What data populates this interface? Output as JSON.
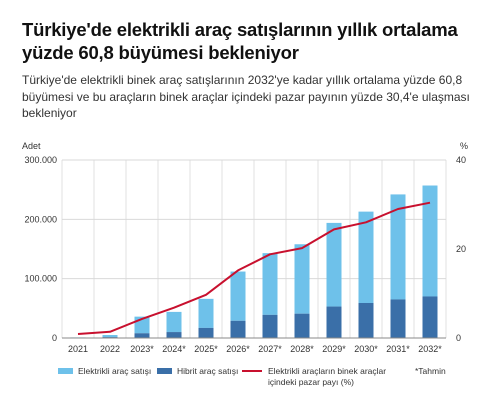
{
  "title": "Türkiye'de elektrikli araç satışlarının yıllık ortalama yüzde 60,8 büyümesi bekleniyor",
  "subtitle": "Türkiye'de elektrikli binek araç satışlarının 2032'ye kadar yıllık ortalama yüzde 60,8 büyümesi ve bu araçların binek araçlar içindeki pazar payının yüzde 30,4'e ulaşması bekleniyor",
  "footnote": "*Tahmin",
  "colors": {
    "electric": "#6ec1ea",
    "hybrid": "#3a6fa8",
    "share": "#c8102e",
    "grid": "#d9d9d9"
  },
  "chart_data": {
    "type": "bar",
    "stacked": true,
    "categories": [
      "2021",
      "2022",
      "2023*",
      "2024*",
      "2025*",
      "2026*",
      "2027*",
      "2028*",
      "2029*",
      "2030*",
      "2031*",
      "2032*"
    ],
    "ylabel": "Adet",
    "y2label": "%",
    "ylim": [
      0,
      300000
    ],
    "y2lim": [
      0,
      40
    ],
    "yticks": [
      "0",
      "100.000",
      "200.000",
      "300.000"
    ],
    "y2ticks": [
      "0",
      "20",
      "40"
    ],
    "grid": true,
    "legend_position": "bottom",
    "series": [
      {
        "name": "Hibrit araç satışı",
        "kind": "bar",
        "values": [
          500,
          1500,
          8000,
          10000,
          17000,
          29000,
          39000,
          41000,
          53000,
          59000,
          65000,
          70000
        ]
      },
      {
        "name": "Elektrikli araç satışı",
        "kind": "bar",
        "values": [
          500,
          3500,
          28000,
          34000,
          49000,
          83000,
          104000,
          117000,
          141000,
          154000,
          177000,
          187000
        ]
      },
      {
        "name": "Elektrikli araçların binek araçlar içindeki pazar payı (%)",
        "kind": "line",
        "axis": "right",
        "values": [
          0.9,
          1.4,
          4.3,
          6.8,
          9.7,
          15.2,
          18.8,
          20.2,
          24.4,
          26.0,
          29.0,
          30.4
        ]
      }
    ]
  }
}
